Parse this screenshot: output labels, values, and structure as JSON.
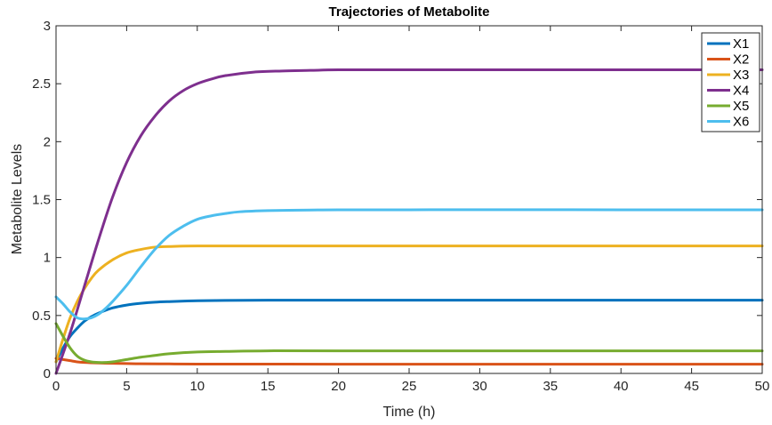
{
  "chart_data": {
    "type": "line",
    "title": "Trajectories of Metabolite",
    "xlabel": "Time (h)",
    "ylabel": "Metabolite Levels",
    "xlim": [
      0,
      50
    ],
    "ylim": [
      0,
      3
    ],
    "xticks": [
      0,
      5,
      10,
      15,
      20,
      25,
      30,
      35,
      40,
      45,
      50
    ],
    "yticks": [
      0,
      0.5,
      1,
      1.5,
      2,
      2.5,
      3
    ],
    "grid": false,
    "legend_position": "top-right",
    "series": [
      {
        "name": "X1",
        "color": "#0072BD",
        "x": [
          0,
          0.5,
          1,
          1.5,
          2,
          2.5,
          3,
          4,
          5,
          6,
          7,
          8,
          10,
          12,
          15,
          20,
          30,
          40,
          50
        ],
        "y": [
          0.1,
          0.22,
          0.32,
          0.39,
          0.45,
          0.49,
          0.52,
          0.565,
          0.59,
          0.605,
          0.615,
          0.62,
          0.627,
          0.63,
          0.632,
          0.632,
          0.632,
          0.632,
          0.632
        ]
      },
      {
        "name": "X2",
        "color": "#D95319",
        "x": [
          0,
          0.5,
          1,
          1.5,
          2,
          3,
          4,
          5,
          6,
          8,
          10,
          20,
          30,
          40,
          50
        ],
        "y": [
          0.13,
          0.12,
          0.11,
          0.1,
          0.095,
          0.09,
          0.087,
          0.085,
          0.083,
          0.082,
          0.081,
          0.08,
          0.08,
          0.08,
          0.08
        ]
      },
      {
        "name": "X3",
        "color": "#EDB120",
        "x": [
          0,
          0.5,
          1,
          1.5,
          2,
          2.5,
          3,
          4,
          5,
          6,
          7,
          8,
          10,
          15,
          20,
          30,
          40,
          50
        ],
        "y": [
          0.1,
          0.3,
          0.48,
          0.62,
          0.73,
          0.82,
          0.89,
          0.98,
          1.04,
          1.07,
          1.09,
          1.095,
          1.1,
          1.1,
          1.1,
          1.1,
          1.1,
          1.1
        ]
      },
      {
        "name": "X4",
        "color": "#7E2F8E",
        "x": [
          0,
          1,
          2,
          3,
          4,
          5,
          6,
          7,
          8,
          9,
          10,
          11,
          12,
          14,
          16,
          18,
          20,
          25,
          30,
          40,
          50
        ],
        "y": [
          0,
          0.35,
          0.75,
          1.15,
          1.52,
          1.82,
          2.05,
          2.22,
          2.35,
          2.44,
          2.5,
          2.54,
          2.57,
          2.6,
          2.61,
          2.615,
          2.62,
          2.62,
          2.62,
          2.62,
          2.62
        ]
      },
      {
        "name": "X5",
        "color": "#77AC30",
        "x": [
          0,
          0.5,
          1,
          1.5,
          2,
          2.5,
          3,
          3.5,
          4,
          5,
          6,
          7,
          8,
          10,
          12,
          15,
          20,
          30,
          40,
          50
        ],
        "y": [
          0.43,
          0.32,
          0.22,
          0.15,
          0.115,
          0.1,
          0.095,
          0.095,
          0.1,
          0.12,
          0.14,
          0.155,
          0.17,
          0.185,
          0.19,
          0.195,
          0.195,
          0.195,
          0.195,
          0.195
        ]
      },
      {
        "name": "X6",
        "color": "#4DBEEE",
        "x": [
          0,
          0.5,
          1,
          1.5,
          2,
          2.5,
          3,
          3.5,
          4,
          5,
          6,
          7,
          8,
          9,
          10,
          11,
          12,
          13,
          15,
          18,
          20,
          25,
          30,
          40,
          50
        ],
        "y": [
          0.66,
          0.6,
          0.53,
          0.48,
          0.47,
          0.48,
          0.51,
          0.56,
          0.62,
          0.76,
          0.92,
          1.07,
          1.19,
          1.27,
          1.33,
          1.36,
          1.38,
          1.395,
          1.405,
          1.41,
          1.412,
          1.412,
          1.413,
          1.412,
          1.412
        ]
      }
    ]
  }
}
